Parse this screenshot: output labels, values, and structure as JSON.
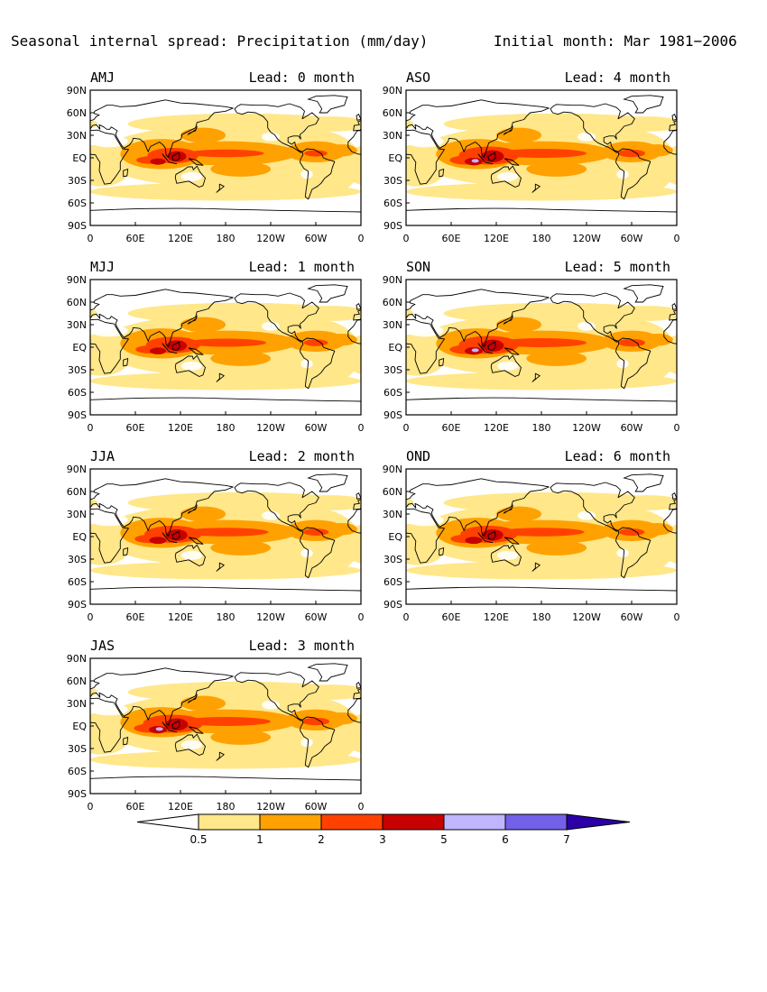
{
  "figure": {
    "title": "Seasonal internal spread: Precipitation (mm/day)",
    "init_label": "Initial month: Mar 1981−2006"
  },
  "lat_ticks": [
    "90N",
    "60N",
    "30N",
    "EQ",
    "30S",
    "60S",
    "90S"
  ],
  "lon_ticks": [
    "0",
    "60E",
    "120E",
    "180",
    "120W",
    "60W",
    "0"
  ],
  "panels": [
    {
      "season": "AMJ",
      "lead": "Lead: 0 month",
      "strength": 0.85
    },
    {
      "season": "ASO",
      "lead": "Lead: 4 month",
      "strength": 1.0
    },
    {
      "season": "MJJ",
      "lead": "Lead: 1 month",
      "strength": 0.9
    },
    {
      "season": "SON",
      "lead": "Lead: 5 month",
      "strength": 1.0
    },
    {
      "season": "JJA",
      "lead": "Lead: 2 month",
      "strength": 0.95
    },
    {
      "season": "OND",
      "lead": "Lead: 6 month",
      "strength": 0.95
    },
    {
      "season": "JAS",
      "lead": "Lead: 3 month",
      "strength": 1.0
    }
  ],
  "colorbar": {
    "levels": [
      "0.5",
      "1",
      "2",
      "3",
      "5",
      "6",
      "7"
    ],
    "colors": [
      "#ffffff",
      "#ffe78a",
      "#ffa100",
      "#ff4100",
      "#c70000",
      "#c0b6ff",
      "#7360e8",
      "#2b00a6"
    ]
  }
}
